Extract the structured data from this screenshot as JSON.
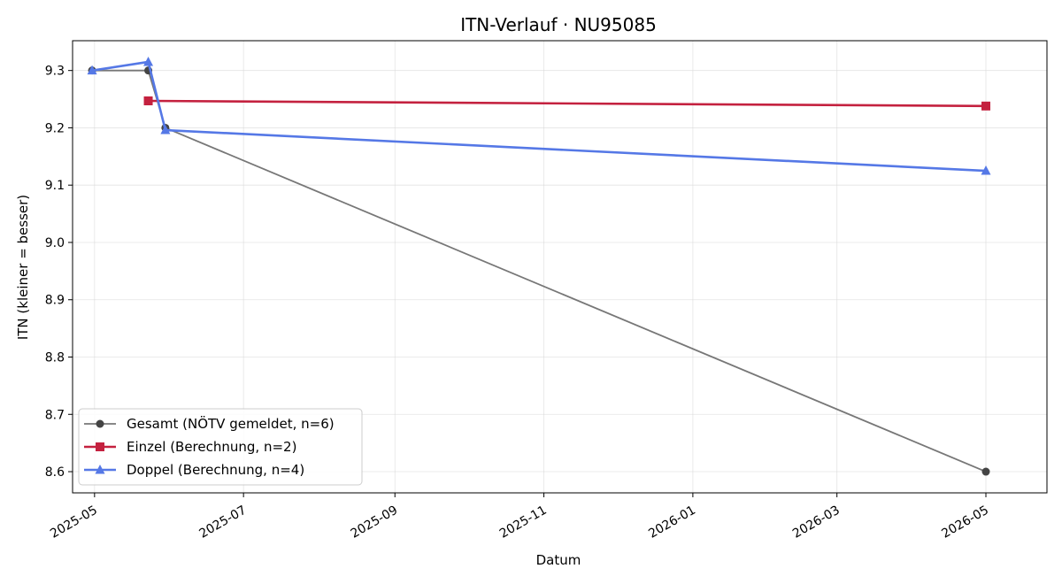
{
  "chart_data": {
    "type": "line",
    "title": "ITN-Verlauf · NU95085",
    "xlabel": "Datum",
    "ylabel": "ITN  (kleiner = besser)",
    "x_type": "date",
    "xlim": [
      "2025-04-22",
      "2026-05-26"
    ],
    "ylim": [
      8.563,
      9.352
    ],
    "x_ticks": [
      "2025-05",
      "2025-07",
      "2025-09",
      "2025-11",
      "2026-01",
      "2026-03",
      "2026-05"
    ],
    "y_ticks": [
      8.6,
      8.7,
      8.8,
      8.9,
      9.0,
      9.1,
      9.2,
      9.3
    ],
    "grid": true,
    "legend_position": "lower-left",
    "series": [
      {
        "name": "Gesamt (NÖTV gemeldet, n=6)",
        "color": "#777777",
        "marker_color": "#444444",
        "marker": "circle",
        "points": [
          {
            "x": "2025-04-30",
            "y": 9.3
          },
          {
            "x": "2025-05-23",
            "y": 9.3
          },
          {
            "x": "2025-05-30",
            "y": 9.2
          },
          {
            "x": "2026-05-01",
            "y": 8.6
          }
        ]
      },
      {
        "name": "Einzel (Berechnung, n=2)",
        "color": "#c4213f",
        "marker_color": "#c4213f",
        "marker": "square",
        "points": [
          {
            "x": "2025-05-23",
            "y": 9.247
          },
          {
            "x": "2026-05-01",
            "y": 9.238
          }
        ]
      },
      {
        "name": "Doppel (Berechnung, n=4)",
        "color": "#5578e6",
        "marker_color": "#5578e6",
        "marker": "triangle",
        "points": [
          {
            "x": "2025-04-30",
            "y": 9.3
          },
          {
            "x": "2025-05-23",
            "y": 9.315
          },
          {
            "x": "2025-05-30",
            "y": 9.196
          },
          {
            "x": "2026-05-01",
            "y": 9.125
          }
        ]
      }
    ]
  }
}
